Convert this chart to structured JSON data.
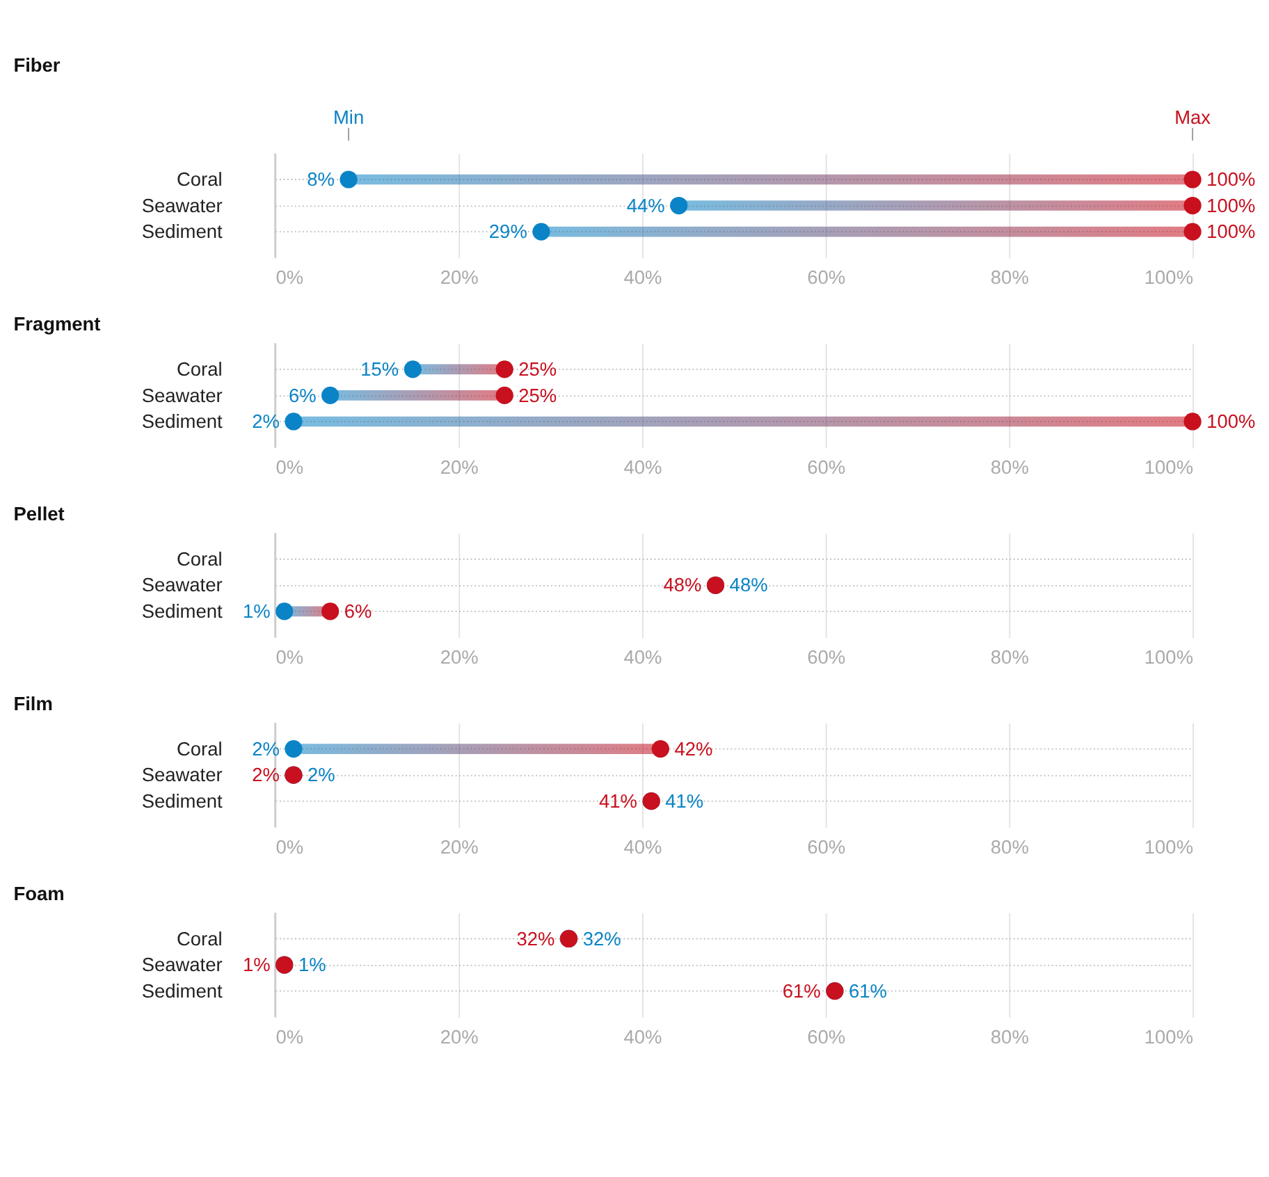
{
  "chart_data": [
    {
      "type": "scatter",
      "title": "Fiber",
      "orientation": "horizontal",
      "categories": [
        "Coral",
        "Seawater",
        "Sediment"
      ],
      "xlim": [
        0,
        100
      ],
      "xticks": [
        {
          "value": 0,
          "label": "0%"
        },
        {
          "value": 20,
          "label": "20%"
        },
        {
          "value": 40,
          "label": "40%"
        },
        {
          "value": 60,
          "label": "60%"
        },
        {
          "value": 80,
          "label": "80%"
        },
        {
          "value": 100,
          "label": "100%"
        }
      ],
      "grid": true,
      "legend": "top",
      "marker": "circle",
      "series": [
        {
          "name": "Min",
          "color": "#0a84c6",
          "values": [
            8,
            44,
            29
          ],
          "value_labels": [
            "8%",
            "44%",
            "29%"
          ]
        },
        {
          "name": "Max",
          "color": "#c8101e",
          "values": [
            100,
            100,
            100
          ],
          "value_labels": [
            "100%",
            "100%",
            "100%"
          ]
        }
      ]
    },
    {
      "type": "scatter",
      "title": "Fragment",
      "orientation": "horizontal",
      "categories": [
        "Coral",
        "Seawater",
        "Sediment"
      ],
      "xlim": [
        0,
        100
      ],
      "xticks": [
        {
          "value": 0,
          "label": "0%"
        },
        {
          "value": 20,
          "label": "20%"
        },
        {
          "value": 40,
          "label": "40%"
        },
        {
          "value": 60,
          "label": "60%"
        },
        {
          "value": 80,
          "label": "80%"
        },
        {
          "value": 100,
          "label": "100%"
        }
      ],
      "grid": true,
      "marker": "circle",
      "series": [
        {
          "color": "#0a84c6",
          "values": [
            15,
            6,
            2
          ],
          "value_labels": [
            "15%",
            "6%",
            "2%"
          ]
        },
        {
          "color": "#c8101e",
          "values": [
            25,
            25,
            100
          ],
          "value_labels": [
            "25%",
            "25%",
            "100%"
          ]
        }
      ]
    },
    {
      "type": "scatter",
      "title": "Pellet",
      "orientation": "horizontal",
      "categories": [
        "Coral",
        "Seawater",
        "Sediment"
      ],
      "xlim": [
        0,
        100
      ],
      "xticks": [
        {
          "value": 0,
          "label": "0%"
        },
        {
          "value": 20,
          "label": "20%"
        },
        {
          "value": 40,
          "label": "40%"
        },
        {
          "value": 60,
          "label": "60%"
        },
        {
          "value": 80,
          "label": "80%"
        },
        {
          "value": 100,
          "label": "100%"
        }
      ],
      "grid": true,
      "marker": "circle",
      "series": [
        {
          "color": "#0a84c6",
          "values": [
            null,
            48,
            1
          ],
          "value_labels": [
            null,
            "48%",
            "1%"
          ]
        },
        {
          "color": "#c8101e",
          "values": [
            null,
            48,
            6
          ],
          "value_labels": [
            null,
            "48%",
            "6%"
          ]
        }
      ]
    },
    {
      "type": "scatter",
      "title": "Film",
      "orientation": "horizontal",
      "categories": [
        "Coral",
        "Seawater",
        "Sediment"
      ],
      "xlim": [
        0,
        100
      ],
      "xticks": [
        {
          "value": 0,
          "label": "0%"
        },
        {
          "value": 20,
          "label": "20%"
        },
        {
          "value": 40,
          "label": "40%"
        },
        {
          "value": 60,
          "label": "60%"
        },
        {
          "value": 80,
          "label": "80%"
        },
        {
          "value": 100,
          "label": "100%"
        }
      ],
      "grid": true,
      "marker": "circle",
      "series": [
        {
          "color": "#0a84c6",
          "values": [
            2,
            2,
            41
          ],
          "value_labels": [
            "2%",
            "2%",
            "41%"
          ]
        },
        {
          "color": "#c8101e",
          "values": [
            42,
            2,
            41
          ],
          "value_labels": [
            "42%",
            "2%",
            "41%"
          ]
        }
      ]
    },
    {
      "type": "scatter",
      "title": "Foam",
      "orientation": "horizontal",
      "categories": [
        "Coral",
        "Seawater",
        "Sediment"
      ],
      "xlim": [
        0,
        100
      ],
      "xticks": [
        {
          "value": 0,
          "label": "0%"
        },
        {
          "value": 20,
          "label": "20%"
        },
        {
          "value": 40,
          "label": "40%"
        },
        {
          "value": 60,
          "label": "60%"
        },
        {
          "value": 80,
          "label": "80%"
        },
        {
          "value": 100,
          "label": "100%"
        }
      ],
      "grid": true,
      "marker": "circle",
      "series": [
        {
          "color": "#0a84c6",
          "values": [
            32,
            1,
            61
          ],
          "value_labels": [
            "32%",
            "1%",
            "61%"
          ]
        },
        {
          "color": "#c8101e",
          "values": [
            32,
            1,
            61
          ],
          "value_labels": [
            "32%",
            "1%",
            "61%"
          ]
        }
      ]
    }
  ]
}
